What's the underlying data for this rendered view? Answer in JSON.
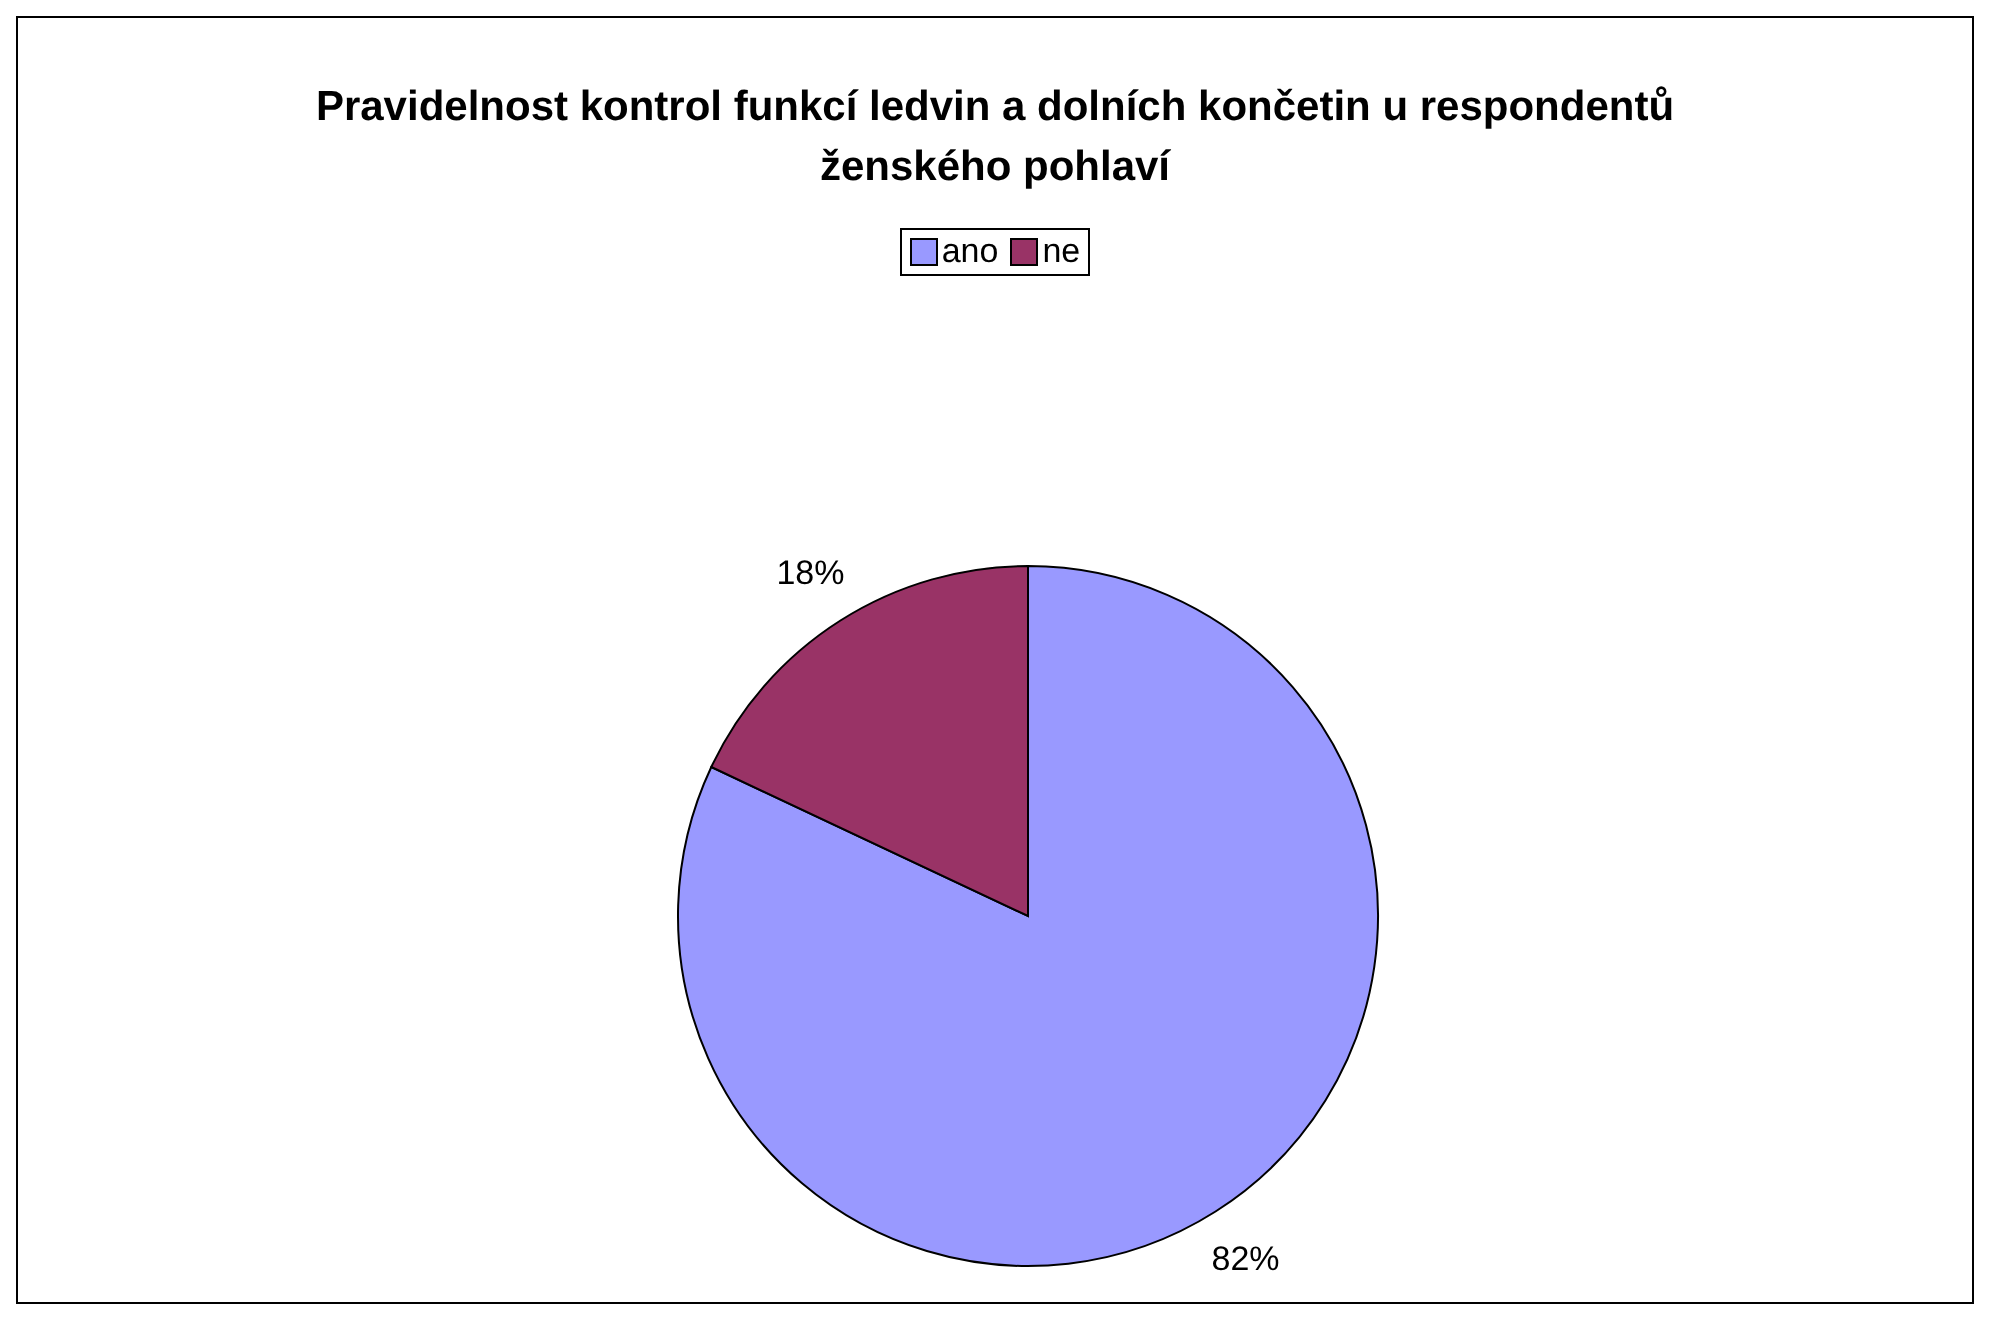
{
  "chart_data": {
    "type": "pie",
    "title": "Pravidelnost kontrol funkcí ledvin a dolních končetin u respondentů ženského pohlaví",
    "categories": [
      "ano",
      "ne"
    ],
    "values": [
      82,
      18
    ],
    "value_labels": [
      "82%",
      "18%"
    ],
    "colors": [
      "#9999ff",
      "#993366"
    ],
    "legend": "top"
  }
}
